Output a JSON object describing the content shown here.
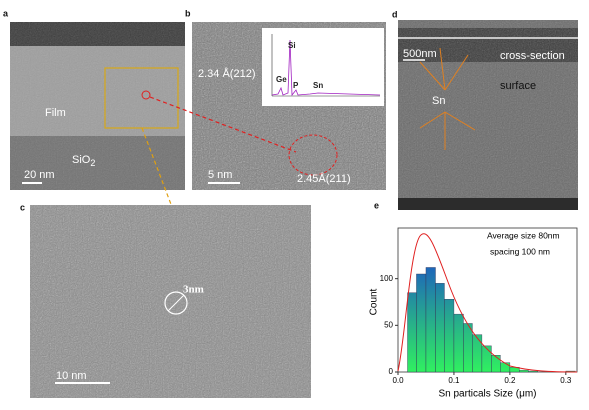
{
  "panels": {
    "a": {
      "label": "a",
      "film": "Film",
      "substrate": "SiO",
      "substrate_sub": "2",
      "scale": "20 nm"
    },
    "b": {
      "label": "b",
      "plane1": "2.34 Å(212)",
      "plane2": "2.45Å(211)",
      "scale": "5 nm",
      "inset_peaks": [
        "Si",
        "Ge",
        "P",
        "Sn"
      ]
    },
    "c": {
      "label": "c",
      "size": "3nm",
      "scale": "10 nm"
    },
    "d": {
      "label": "d",
      "top": "cross-section",
      "bottom": "surface",
      "particle": "Sn",
      "scale": "500nm"
    },
    "e": {
      "label": "e"
    }
  },
  "chart_data": {
    "type": "histogram",
    "annotations": [
      "Average size 80nm",
      "spacing 100 nm"
    ],
    "xlabel": "Sn particals Size (μm)",
    "ylabel": "Count",
    "bins": [
      0.017,
      0.033,
      0.05,
      0.067,
      0.083,
      0.1,
      0.117,
      0.133,
      0.15,
      0.167,
      0.183,
      0.2,
      0.217,
      0.233,
      0.25,
      0.267,
      0.283,
      0.3,
      0.317
    ],
    "values": [
      85,
      105,
      112,
      95,
      78,
      62,
      52,
      40,
      28,
      18,
      10,
      5,
      2,
      1,
      0,
      0,
      0,
      1
    ],
    "color_top": "#1838d8",
    "color_bottom": "#30f060",
    "xlim": [
      0,
      0.32
    ],
    "ylim": [
      0,
      150
    ],
    "xticks": [
      {
        "value": 0,
        "label": "0.0"
      },
      0.1,
      0.2,
      0.3
    ],
    "yticks": [
      0,
      50,
      100
    ]
  }
}
